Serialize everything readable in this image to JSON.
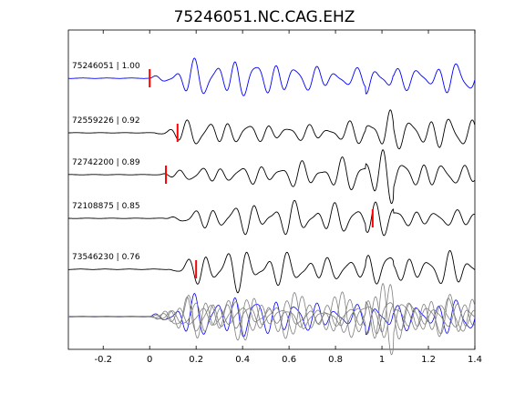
{
  "chart_data": {
    "type": "line",
    "title": "75246051.NC.CAG.EHZ",
    "xlabel": "",
    "ylabel": "",
    "xlim": [
      -0.35,
      1.4
    ],
    "xticks": [
      -0.2,
      0,
      0.2,
      0.4,
      0.6,
      0.8,
      1,
      1.2,
      1.4
    ],
    "xtick_labels": [
      "-0.2",
      "0",
      "0.2",
      "0.4",
      "0.6",
      "0.8",
      "1",
      "1.2",
      "1.4"
    ],
    "grid": false,
    "colors": {
      "reference": "#0000ff",
      "trace": "#000000",
      "stack": "#7f7f7f",
      "pick": "#ff0000"
    },
    "series": [
      {
        "label": "75246051 | 1.00",
        "pick_time": 0.0,
        "reference": true
      },
      {
        "label": "72559226 | 0.92",
        "pick_time": 0.12
      },
      {
        "label": "72742200 | 0.89",
        "pick_time": 0.07
      },
      {
        "label": "72108875 | 0.85",
        "pick_time": 0.96
      },
      {
        "label": "73546230 | 0.76",
        "pick_time": 0.2
      }
    ],
    "overlay": {
      "description_visible": false,
      "traces": 5
    }
  }
}
